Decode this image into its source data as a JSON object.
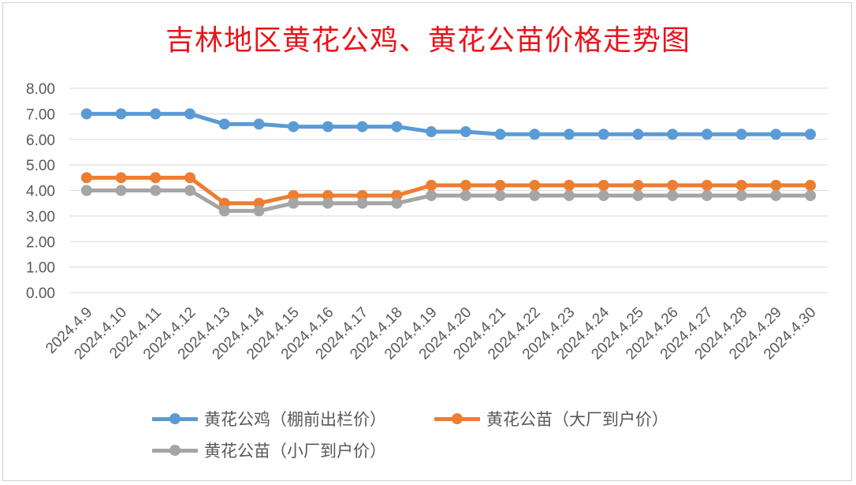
{
  "chart_data": {
    "type": "line",
    "title": "吉林地区黄花公鸡、黄花公苗价格走势图",
    "categories": [
      "2024.4.9",
      "2024.4.10",
      "2024.4.11",
      "2024.4.12",
      "2024.4.13",
      "2024.4.14",
      "2024.4.15",
      "2024.4.16",
      "2024.4.17",
      "2024.4.18",
      "2024.4.19",
      "2024.4.20",
      "2024.4.21",
      "2024.4.22",
      "2024.4.23",
      "2024.4.24",
      "2024.4.25",
      "2024.4.26",
      "2024.4.27",
      "2024.4.28",
      "2024.4.29",
      "2024.4.30"
    ],
    "ylim": [
      0,
      8
    ],
    "yticks": [
      "0.00",
      "1.00",
      "2.00",
      "3.00",
      "4.00",
      "5.00",
      "6.00",
      "7.00",
      "8.00"
    ],
    "grid": true,
    "legend_position": "bottom",
    "series": [
      {
        "name": "黄花公鸡（棚前出栏价）",
        "color": "#5b9bd5",
        "values": [
          7.0,
          7.0,
          7.0,
          7.0,
          6.6,
          6.6,
          6.5,
          6.5,
          6.5,
          6.5,
          6.3,
          6.3,
          6.2,
          6.2,
          6.2,
          6.2,
          6.2,
          6.2,
          6.2,
          6.2,
          6.2,
          6.2
        ]
      },
      {
        "name": "黄花公苗（大厂到户价）",
        "color": "#ed7d31",
        "values": [
          4.5,
          4.5,
          4.5,
          4.5,
          3.5,
          3.5,
          3.8,
          3.8,
          3.8,
          3.8,
          4.2,
          4.2,
          4.2,
          4.2,
          4.2,
          4.2,
          4.2,
          4.2,
          4.2,
          4.2,
          4.2,
          4.2
        ]
      },
      {
        "name": "黄花公苗（小厂到户价）",
        "color": "#a5a5a5",
        "values": [
          4.0,
          4.0,
          4.0,
          4.0,
          3.2,
          3.2,
          3.5,
          3.5,
          3.5,
          3.5,
          3.8,
          3.8,
          3.8,
          3.8,
          3.8,
          3.8,
          3.8,
          3.8,
          3.8,
          3.8,
          3.8,
          3.8
        ]
      }
    ]
  }
}
